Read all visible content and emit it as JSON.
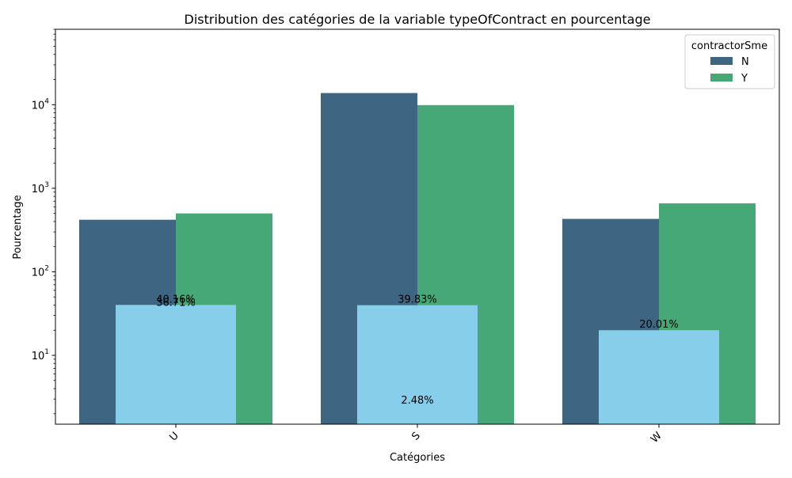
{
  "chart_data": {
    "type": "bar",
    "title": "Distribution des catégories de la variable typeOfContract en pourcentage",
    "xlabel": "Catégories",
    "ylabel": "Pourcentage",
    "yscale": "log",
    "ylim": [
      1.5,
      80000
    ],
    "categories": [
      "U",
      "S",
      "W"
    ],
    "yticks": [
      {
        "value": 10,
        "mantissa": "10",
        "exp": "1"
      },
      {
        "value": 100,
        "mantissa": "10",
        "exp": "2"
      },
      {
        "value": 1000,
        "mantissa": "10",
        "exp": "3"
      },
      {
        "value": 10000,
        "mantissa": "10",
        "exp": "4"
      }
    ],
    "legend": {
      "title": "contractorSme",
      "placement": "top-right"
    },
    "series": [
      {
        "name": "N",
        "color": "#3e6682",
        "values": [
          420,
          13800,
          430
        ]
      },
      {
        "name": "Y",
        "color": "#45a876",
        "values": [
          500,
          9900,
          660
        ]
      }
    ],
    "overlay": {
      "color": "#87ceeb",
      "values": [
        40.16,
        39.83,
        20.01
      ]
    },
    "annotations": [
      {
        "text": "40.16%",
        "category": "U",
        "y": 40.16
      },
      {
        "text": "36.71%",
        "category": "U",
        "y": 36.71
      },
      {
        "text": "39.83%",
        "category": "S",
        "y": 39.83
      },
      {
        "text": "2.48%",
        "category": "S",
        "y": 2.48
      },
      {
        "text": "20.01%",
        "category": "W",
        "y": 20.01
      }
    ]
  }
}
